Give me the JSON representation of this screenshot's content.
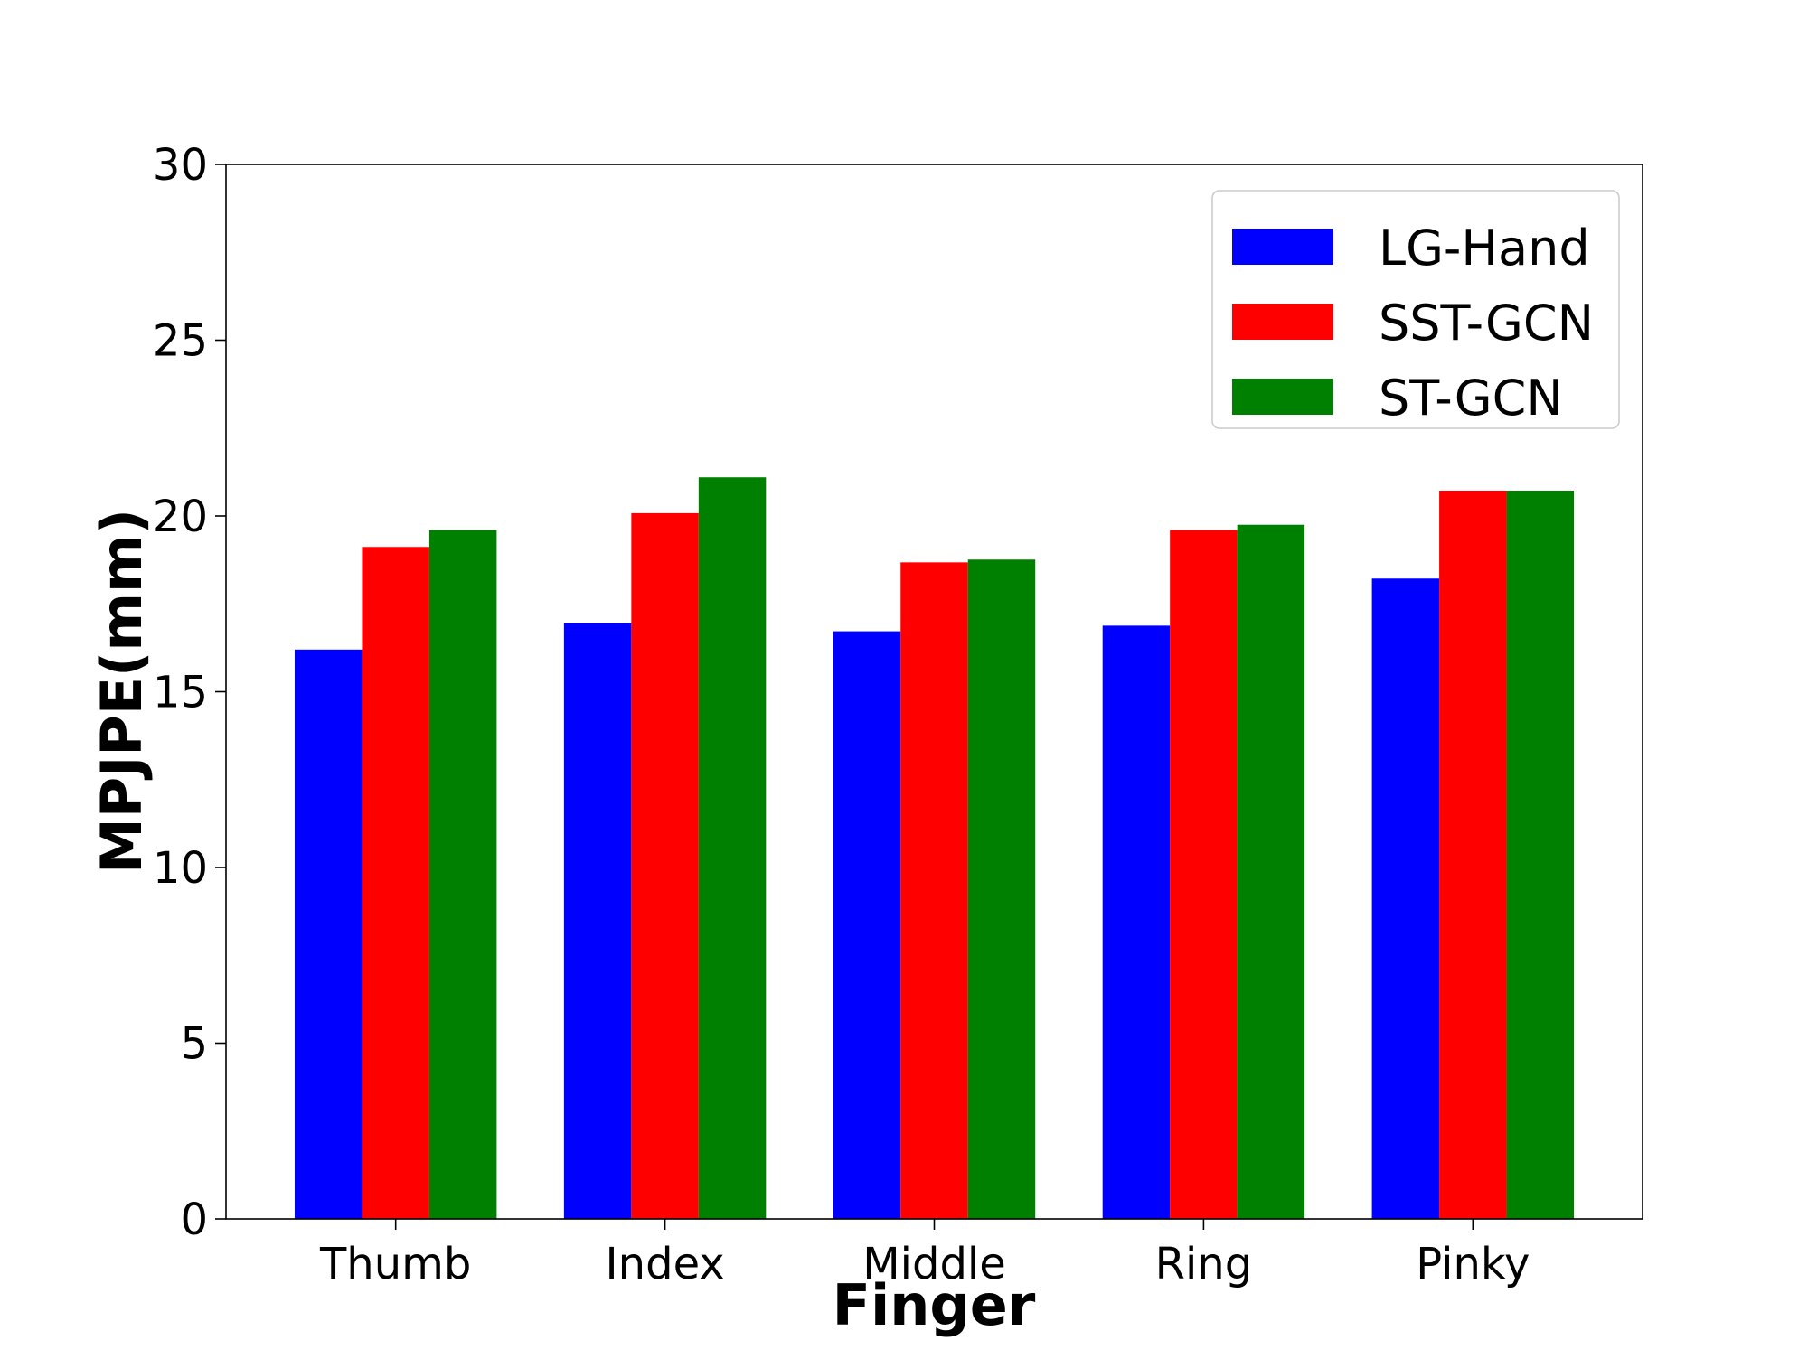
{
  "chart_data": {
    "type": "bar",
    "title": "",
    "xlabel": "Finger",
    "ylabel": "MPJPE(mm)",
    "categories": [
      "Thumb",
      "Index",
      "Middle",
      "Ring",
      "Pinky"
    ],
    "series": [
      {
        "name": "LG-Hand",
        "color": "#0000ff",
        "values": [
          16.2,
          16.95,
          16.72,
          16.88,
          18.22
        ]
      },
      {
        "name": "SST-GCN",
        "color": "#ff0000",
        "values": [
          19.12,
          20.08,
          18.68,
          19.6,
          20.72
        ]
      },
      {
        "name": "ST-GCN",
        "color": "#008000",
        "values": [
          19.6,
          21.1,
          18.76,
          19.75,
          20.72
        ]
      }
    ],
    "ylim": [
      0,
      30
    ],
    "yticks": [
      0,
      5,
      10,
      15,
      20,
      25,
      30
    ],
    "grid": false,
    "legend_position": "top-right"
  }
}
